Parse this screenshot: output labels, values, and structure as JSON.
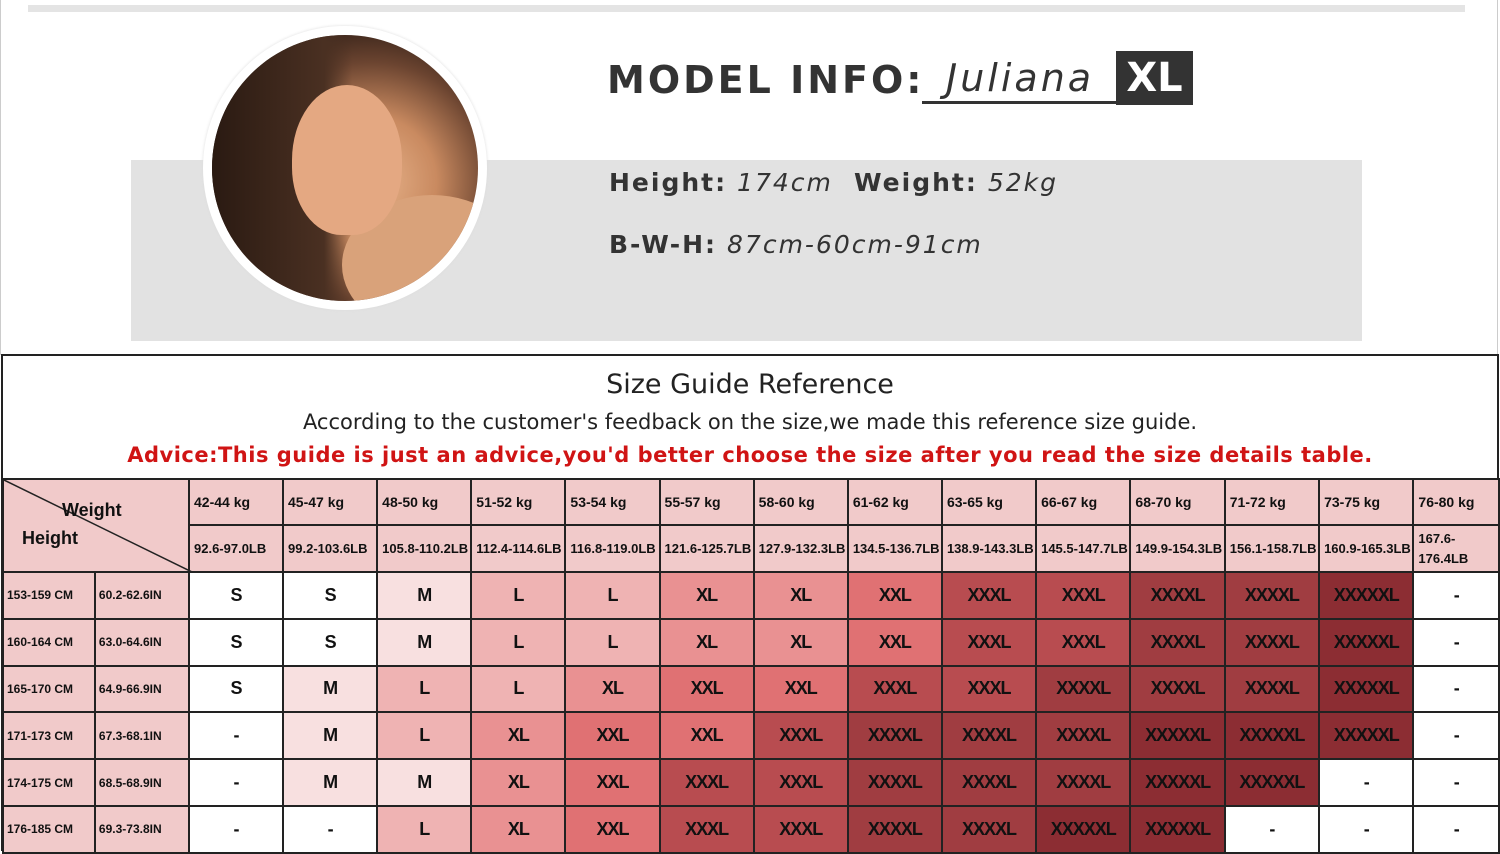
{
  "model": {
    "label": "MODEL INFO:",
    "name": "Juliana",
    "size": "XL",
    "height_label": "Height:",
    "height": "174cm",
    "weight_label": "Weight:",
    "weight": "52kg",
    "bwh_label": "B-W-H:",
    "bwh": "87cm-60cm-91cm"
  },
  "guide": {
    "title": "Size Guide Reference",
    "subtitle": "According to the customer's feedback on the size,we made this reference size guide.",
    "advice": "Advice:This guide is just an advice,you'd better choose the size after you read the size details table.",
    "advice_color": "#d01414",
    "corner_weight": "Weight",
    "corner_height": "Height",
    "weights_kg": [
      "42-44 kg",
      "45-47 kg",
      "48-50 kg",
      "51-52 kg",
      "53-54 kg",
      "55-57 kg",
      "58-60 kg",
      "61-62 kg",
      "63-65 kg",
      "66-67 kg",
      "68-70 kg",
      "71-72 kg",
      "73-75 kg",
      "76-80 kg"
    ],
    "weights_lb": [
      "92.6-97.0LB",
      "99.2-103.6LB",
      "105.8-110.2LB",
      "112.4-114.6LB",
      "116.8-119.0LB",
      "121.6-125.7LB",
      "127.9-132.3LB",
      "134.5-136.7LB",
      "138.9-143.3LB",
      "145.5-147.7LB",
      "149.9-154.3LB",
      "156.1-158.7LB",
      "160.9-165.3LB",
      "167.6-176.4LB"
    ],
    "rows": [
      {
        "cm": "153-159 CM",
        "in": "60.2-62.6IN",
        "sizes": [
          "S",
          "S",
          "M",
          "L",
          "L",
          "XL",
          "XL",
          "XXL",
          "XXXL",
          "XXXL",
          "XXXXL",
          "XXXXL",
          "XXXXXL",
          "-"
        ]
      },
      {
        "cm": "160-164 CM",
        "in": "63.0-64.6IN",
        "sizes": [
          "S",
          "S",
          "M",
          "L",
          "L",
          "XL",
          "XL",
          "XXL",
          "XXXL",
          "XXXL",
          "XXXXL",
          "XXXXL",
          "XXXXXL",
          "-"
        ]
      },
      {
        "cm": "165-170 CM",
        "in": "64.9-66.9IN",
        "sizes": [
          "S",
          "M",
          "L",
          "L",
          "XL",
          "XXL",
          "XXL",
          "XXXL",
          "XXXL",
          "XXXXL",
          "XXXXL",
          "XXXXL",
          "XXXXXL",
          "-"
        ]
      },
      {
        "cm": "171-173 CM",
        "in": "67.3-68.1IN",
        "sizes": [
          "-",
          "M",
          "L",
          "XL",
          "XXL",
          "XXL",
          "XXXL",
          "XXXXL",
          "XXXXL",
          "XXXXL",
          "XXXXXL",
          "XXXXXL",
          "XXXXXL",
          "-"
        ]
      },
      {
        "cm": "174-175 CM",
        "in": "68.5-68.9IN",
        "sizes": [
          "-",
          "M",
          "M",
          "XL",
          "XXL",
          "XXXL",
          "XXXL",
          "XXXXL",
          "XXXXL",
          "XXXXL",
          "XXXXXL",
          "XXXXXL",
          "-",
          "-"
        ]
      },
      {
        "cm": "176-185 CM",
        "in": "69.3-73.8IN",
        "sizes": [
          "-",
          "-",
          "L",
          "XL",
          "XXL",
          "XXXL",
          "XXXL",
          "XXXXL",
          "XXXXL",
          "XXXXXL",
          "XXXXXL",
          "-",
          "-",
          "-"
        ]
      }
    ]
  },
  "size_colors": {
    "-": "#ffffff",
    "S": "#ffffff",
    "M": "#f8e0e0",
    "L": "#efb3b3",
    "XL": "#e99192",
    "XXL": "#e07173",
    "XXXL": "#b84c50",
    "XXXXL": "#a03d41",
    "XXXXXL": "#8c2d33"
  }
}
